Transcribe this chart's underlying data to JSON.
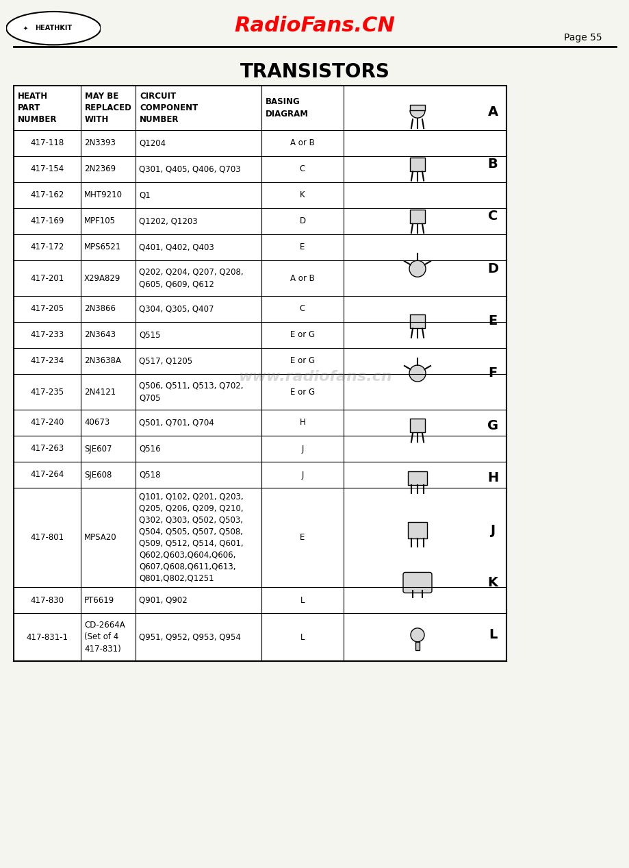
{
  "title": "TRANSISTORS",
  "header_watermark": "RadioFans.CN",
  "page_label": "Page 55",
  "bg_color": "#f5f5ef",
  "table_bg": "#ffffff",
  "col_headers": [
    "HEATH\nPART\nNUMBER",
    "MAY BE\nREPLACED\nWITH",
    "CIRCUIT\nCOMPONENT\nNUMBER",
    "BASING\nDIAGRAM"
  ],
  "rows": [
    [
      "417-118",
      "2N3393",
      "Q1204",
      "A or B"
    ],
    [
      "417-154",
      "2N2369",
      "Q301, Q405, Q406, Q703",
      "C"
    ],
    [
      "417-162",
      "MHT9210",
      "Q1",
      "K"
    ],
    [
      "417-169",
      "MPF105",
      "Q1202, Q1203",
      "D"
    ],
    [
      "417-172",
      "MPS6521",
      "Q401, Q402, Q403",
      "E"
    ],
    [
      "417-201",
      "X29A829",
      "Q202, Q204, Q207, Q208,\nQ605, Q609, Q612",
      "A or B"
    ],
    [
      "417-205",
      "2N3866",
      "Q304, Q305, Q407",
      "C"
    ],
    [
      "417-233",
      "2N3643",
      "Q515",
      "E or G"
    ],
    [
      "417-234",
      "2N3638A",
      "Q517, Q1205",
      "E or G"
    ],
    [
      "417-235",
      "2N4121",
      "Q506, Q511, Q513, Q702,\nQ705",
      "E or G"
    ],
    [
      "417-240",
      "40673",
      "Q501, Q701, Q704",
      "H"
    ],
    [
      "417-263",
      "SJE607",
      "Q516",
      "J"
    ],
    [
      "417-264",
      "SJE608",
      "Q518",
      "J"
    ],
    [
      "417-801",
      "MPSA20",
      "Q101, Q102, Q201, Q203,\nQ205, Q206, Q209, Q210,\nQ302, Q303, Q502, Q503,\nQ504, Q505, Q507, Q508,\nQ509, Q512, Q514, Q601,\nQ602,Q603,Q604,Q606,\nQ607,Q608,Q611,Q613,\nQ801,Q802,Q1251",
      "E"
    ],
    [
      "417-830",
      "PT6619",
      "Q901, Q902",
      "L"
    ],
    [
      "417-831-1",
      "CD-2664A\n(Set of 4\n417-831)",
      "Q951, Q952, Q953, Q954",
      "L"
    ]
  ],
  "diagram_labels": [
    "A",
    "B",
    "C",
    "D",
    "E",
    "F",
    "G",
    "H",
    "J",
    "K",
    "L"
  ],
  "watermark_text": "www.radiofans.cn"
}
